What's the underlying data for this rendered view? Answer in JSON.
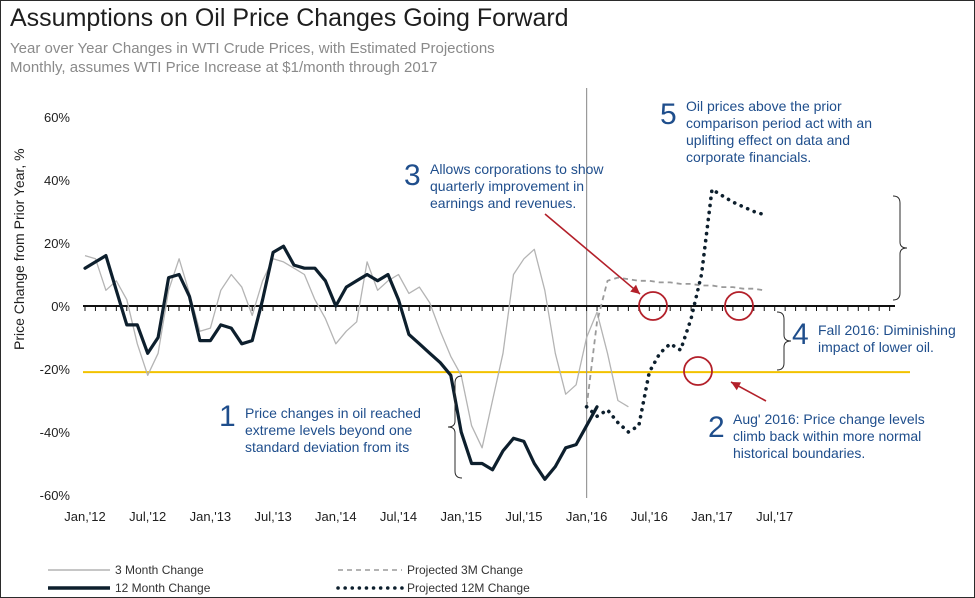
{
  "title": "Assumptions on Oil Price Changes Going Forward",
  "subtitle_1": "Year over Year Changes in WTI Crude Prices, with Estimated Projections",
  "subtitle_2": "Monthly, assumes WTI Price Increase at $1/month through 2017",
  "colors": {
    "three_month": "#b4b4b4",
    "twelve_month": "#0d1f2d",
    "projected_3m": "#9a9a9a",
    "projected_12m": "#0d1f2d",
    "threshold": "#f2c200",
    "annotation": "#1f4e8c",
    "circle": "#b3202a",
    "arrow": "#b3202a",
    "divider": "#9a9a9a"
  },
  "annotations": [
    {
      "number": "1",
      "text": [
        "Price changes in oil reached",
        "extreme levels beyond one",
        "standard deviation from its"
      ]
    },
    {
      "number": "2",
      "text": [
        "Aug' 2016: Price change levels",
        "climb back within more normal",
        "historical boundaries."
      ]
    },
    {
      "number": "3",
      "text": [
        "Allows corporations to show",
        "quarterly improvement in",
        "earnings and revenues."
      ]
    },
    {
      "number": "4",
      "text": [
        "Fall 2016: Diminishing",
        "impact of lower oil."
      ]
    },
    {
      "number": "5",
      "text": [
        "Oil prices above the prior",
        "comparison period act with an",
        "uplifting effect on data and",
        "corporate financials."
      ]
    }
  ],
  "legend": {
    "three_month": "3 Month Change",
    "twelve_month": "12 Month Change",
    "projected_3m": "Projected 3M Change",
    "projected_12m": "Projected 12M Change"
  },
  "chart_data": {
    "type": "line",
    "ylabel": "Price Change from Prior Year, %",
    "ylim": [
      -60,
      60
    ],
    "y_ticks": [
      "60%",
      "40%",
      "20%",
      "0%",
      "-20%",
      "-40%",
      "-60%"
    ],
    "x_ticks": [
      "Jan,'12",
      "Jul,'12",
      "Jan,'13",
      "Jul,'13",
      "Jan,'14",
      "Jul,'14",
      "Jan,'15",
      "Jul,'15",
      "Jan,'16",
      "Jul,'16",
      "Jan,'17",
      "Jul,'17"
    ],
    "threshold_line": -21,
    "divider_at": "Jan,'16",
    "series": [
      {
        "name": "3 Month Change",
        "start": "2012-01",
        "values": [
          16,
          15,
          5,
          8,
          2,
          -12,
          -22,
          -15,
          5,
          15,
          4,
          -8,
          -7,
          5,
          10,
          6,
          -3,
          8,
          15,
          14,
          12,
          10,
          2,
          -4,
          -12,
          -8,
          -5,
          14,
          5,
          8,
          10,
          4,
          6,
          1,
          -8,
          -16,
          -22,
          -38,
          -45,
          -30,
          -15,
          10,
          15,
          18,
          5,
          -15,
          -28,
          -25,
          -10,
          -2,
          -15,
          -30,
          -32
        ]
      },
      {
        "name": "12 Month Change",
        "start": "2012-01",
        "values": [
          12,
          14,
          16,
          5,
          -6,
          -6,
          -15,
          -10,
          9,
          10,
          3,
          -11,
          -11,
          -6,
          -7,
          -12,
          -11,
          2,
          17,
          19,
          13,
          12,
          12,
          8,
          0,
          6,
          8,
          10,
          8,
          10,
          2,
          -9,
          -12,
          -15,
          -18,
          -22,
          -40,
          -50,
          -50,
          -52,
          -46,
          -42,
          -43,
          -50,
          -55,
          -51,
          -45,
          -44,
          -38,
          -32
        ]
      },
      {
        "name": "Projected 3M Change",
        "start": "2016-01",
        "values": [
          -32,
          -5,
          8,
          9,
          8.5,
          8,
          8,
          7.5,
          7.5,
          7,
          7,
          6.5,
          6.5,
          6,
          6,
          5.5,
          5.5,
          5
        ]
      },
      {
        "name": "Projected 12M Change",
        "start": "2016-01",
        "values": [
          -32,
          -35,
          -33,
          -37,
          -40,
          -38,
          -21,
          -15,
          -12,
          -14,
          -4,
          10,
          37,
          35,
          33,
          31.5,
          30,
          29
        ]
      }
    ]
  }
}
